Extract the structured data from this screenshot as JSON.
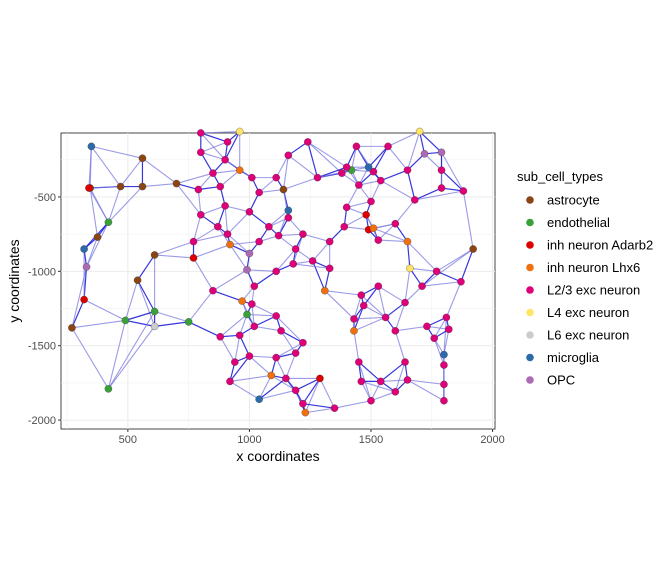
{
  "chart_data": {
    "type": "scatter",
    "xlabel": "x coordinates",
    "ylabel": "y coordinates",
    "xlim": [
      225,
      2010
    ],
    "ylim": [
      -2060,
      -70
    ],
    "xticks": [
      500,
      1000,
      1500,
      2000
    ],
    "yticks": [
      -500,
      -1000,
      -1500,
      -2000
    ],
    "grid": true,
    "legend": {
      "title": "sub_cell_types",
      "placement": "right",
      "entries": [
        {
          "label": "astrocyte",
          "color": "#8B4513"
        },
        {
          "label": "endothelial",
          "color": "#3AA03A"
        },
        {
          "label": "inh neuron Adarb2",
          "color": "#DD0000"
        },
        {
          "label": "inh neuron Lhx6",
          "color": "#F07010"
        },
        {
          "label": "L2/3 exc neuron",
          "color": "#DE0077"
        },
        {
          "label": "L4 exc neuron",
          "color": "#FFE566"
        },
        {
          "label": "L6 exc neuron",
          "color": "#CCCCCC"
        },
        {
          "label": "microglia",
          "color": "#2C6BAA"
        },
        {
          "label": "OPC",
          "color": "#AB6AB3"
        }
      ]
    },
    "edge_colors": {
      "strong": "#2020D8",
      "weak": "#7A7AE0"
    },
    "points": [
      [
        345,
        -440,
        0
      ],
      [
        375,
        -770,
        0
      ],
      [
        470,
        -430,
        0
      ],
      [
        560,
        -430,
        0
      ],
      [
        560,
        -240,
        0
      ],
      [
        540,
        -1060,
        0
      ],
      [
        610,
        -890,
        0
      ],
      [
        700,
        -410,
        0
      ],
      [
        1140,
        -450,
        0
      ],
      [
        270,
        -1380,
        0
      ],
      [
        1920,
        -850,
        0
      ],
      [
        420,
        -670,
        1
      ],
      [
        490,
        -1330,
        1
      ],
      [
        610,
        -1270,
        1
      ],
      [
        750,
        -1340,
        1
      ],
      [
        420,
        -1790,
        1
      ],
      [
        990,
        -1290,
        1
      ],
      [
        1420,
        -320,
        1
      ],
      [
        340,
        -440,
        2
      ],
      [
        320,
        -1190,
        2
      ],
      [
        770,
        -910,
        2
      ],
      [
        1480,
        -620,
        2
      ],
      [
        1490,
        -720,
        2
      ],
      [
        1290,
        -1720,
        2
      ],
      [
        960,
        -320,
        3
      ],
      [
        920,
        -820,
        3
      ],
      [
        970,
        -1200,
        3
      ],
      [
        1090,
        -1700,
        3
      ],
      [
        1310,
        -1130,
        3
      ],
      [
        1430,
        -1400,
        3
      ],
      [
        1230,
        -1950,
        3
      ],
      [
        1510,
        -710,
        3
      ],
      [
        1650,
        -800,
        3
      ],
      [
        800,
        -70,
        4
      ],
      [
        910,
        -130,
        4
      ],
      [
        800,
        -200,
        4
      ],
      [
        1880,
        -460,
        4
      ],
      [
        1810,
        -1310,
        4
      ],
      [
        850,
        -340,
        4
      ],
      [
        900,
        -250,
        4
      ],
      [
        790,
        -450,
        4
      ],
      [
        880,
        -430,
        4
      ],
      [
        800,
        -620,
        4
      ],
      [
        900,
        -560,
        4
      ],
      [
        870,
        -700,
        4
      ],
      [
        910,
        -750,
        4
      ],
      [
        770,
        -800,
        4
      ],
      [
        1000,
        -600,
        4
      ],
      [
        1010,
        -370,
        4
      ],
      [
        1040,
        -470,
        4
      ],
      [
        1110,
        -370,
        4
      ],
      [
        1160,
        -220,
        4
      ],
      [
        1240,
        -130,
        4
      ],
      [
        1280,
        -370,
        4
      ],
      [
        1160,
        -640,
        4
      ],
      [
        1120,
        -760,
        4
      ],
      [
        1040,
        -800,
        4
      ],
      [
        1180,
        -950,
        4
      ],
      [
        1260,
        -930,
        4
      ],
      [
        1220,
        -750,
        4
      ],
      [
        1330,
        -800,
        4
      ],
      [
        1390,
        -700,
        4
      ],
      [
        1400,
        -570,
        4
      ],
      [
        1450,
        -420,
        4
      ],
      [
        1440,
        -160,
        4
      ],
      [
        1380,
        -340,
        4
      ],
      [
        1510,
        -330,
        4
      ],
      [
        1570,
        -160,
        4
      ],
      [
        1540,
        -390,
        4
      ],
      [
        1500,
        -530,
        4
      ],
      [
        1400,
        -300,
        4
      ],
      [
        1530,
        -790,
        4
      ],
      [
        1600,
        -680,
        4
      ],
      [
        1680,
        -520,
        4
      ],
      [
        1790,
        -440,
        4
      ],
      [
        1650,
        -320,
        4
      ],
      [
        1790,
        -320,
        4
      ],
      [
        1770,
        -1000,
        4
      ],
      [
        1710,
        -1100,
        4
      ],
      [
        1870,
        -1070,
        4
      ],
      [
        1460,
        -1160,
        4
      ],
      [
        1530,
        -1100,
        4
      ],
      [
        1640,
        -1210,
        4
      ],
      [
        1560,
        -1310,
        4
      ],
      [
        1470,
        -1230,
        4
      ],
      [
        1430,
        -1320,
        4
      ],
      [
        1600,
        -1400,
        4
      ],
      [
        1730,
        -1370,
        4
      ],
      [
        1820,
        -1390,
        4
      ],
      [
        1760,
        -1450,
        4
      ],
      [
        1800,
        -1630,
        4
      ],
      [
        1800,
        -1760,
        4
      ],
      [
        1800,
        -1870,
        4
      ],
      [
        1450,
        -1610,
        4
      ],
      [
        1460,
        -1740,
        4
      ],
      [
        1540,
        -1740,
        4
      ],
      [
        1640,
        -1610,
        4
      ],
      [
        1650,
        -1730,
        4
      ],
      [
        1600,
        -1810,
        4
      ],
      [
        1500,
        -1870,
        4
      ],
      [
        1350,
        -1920,
        4
      ],
      [
        1220,
        -1890,
        4
      ],
      [
        1190,
        -1800,
        4
      ],
      [
        1150,
        -1720,
        4
      ],
      [
        1110,
        -1580,
        4
      ],
      [
        1190,
        -1550,
        4
      ],
      [
        1220,
        -1480,
        4
      ],
      [
        1130,
        -1400,
        4
      ],
      [
        1110,
        -1300,
        4
      ],
      [
        1020,
        -1370,
        4
      ],
      [
        1000,
        -1570,
        4
      ],
      [
        940,
        -1610,
        4
      ],
      [
        920,
        -1740,
        4
      ],
      [
        960,
        -1430,
        4
      ],
      [
        880,
        -1440,
        4
      ],
      [
        1010,
        -1220,
        4
      ],
      [
        850,
        -1130,
        4
      ],
      [
        1110,
        -1000,
        4
      ],
      [
        1020,
        -1100,
        4
      ],
      [
        1190,
        -850,
        4
      ],
      [
        1080,
        -700,
        4
      ],
      [
        1330,
        -980,
        4
      ],
      [
        960,
        -60,
        5
      ],
      [
        1700,
        -60,
        5
      ],
      [
        1660,
        -980,
        5
      ],
      [
        610,
        -1370,
        6
      ],
      [
        1720,
        -210,
        8
      ],
      [
        1790,
        -200,
        8
      ],
      [
        330,
        -970,
        8
      ],
      [
        990,
        -990,
        8
      ],
      [
        1000,
        -880,
        8
      ],
      [
        350,
        -160,
        7
      ],
      [
        1490,
        -300,
        7
      ],
      [
        1160,
        -590,
        7
      ],
      [
        320,
        -850,
        7
      ],
      [
        1800,
        -1560,
        7
      ],
      [
        1040,
        -1860,
        7
      ]
    ]
  }
}
